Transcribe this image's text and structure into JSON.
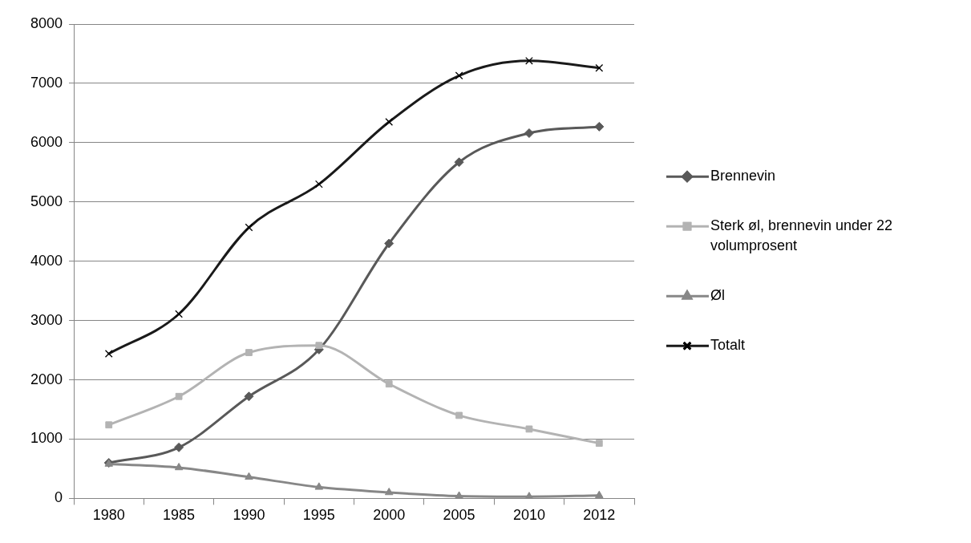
{
  "chart_data": {
    "type": "line",
    "categories": [
      "1980",
      "1985",
      "1990",
      "1995",
      "2000",
      "2005",
      "2010",
      "2012"
    ],
    "series": [
      {
        "name": "Brennevin",
        "color": "#595959",
        "marker": "diamond",
        "values": [
          600,
          860,
          1720,
          2510,
          4300,
          5670,
          6160,
          6270
        ]
      },
      {
        "name": "Sterk øl, brennevin under 22 volumprosent",
        "color": "#b3b3b3",
        "marker": "square",
        "values": [
          1240,
          1720,
          2460,
          2580,
          1930,
          1400,
          1170,
          930
        ]
      },
      {
        "name": "Øl",
        "color": "#878787",
        "marker": "triangle",
        "values": [
          580,
          520,
          360,
          190,
          100,
          40,
          30,
          50
        ]
      },
      {
        "name": "Totalt",
        "color": "#1a1a1a",
        "marker": "cross",
        "values": [
          2440,
          3110,
          4570,
          5300,
          6350,
          7130,
          7380,
          7260
        ]
      }
    ],
    "ylim": [
      0,
      8000
    ],
    "yticks": [
      0,
      1000,
      2000,
      3000,
      4000,
      5000,
      6000,
      7000,
      8000
    ],
    "grid": "y",
    "legend": "right"
  }
}
